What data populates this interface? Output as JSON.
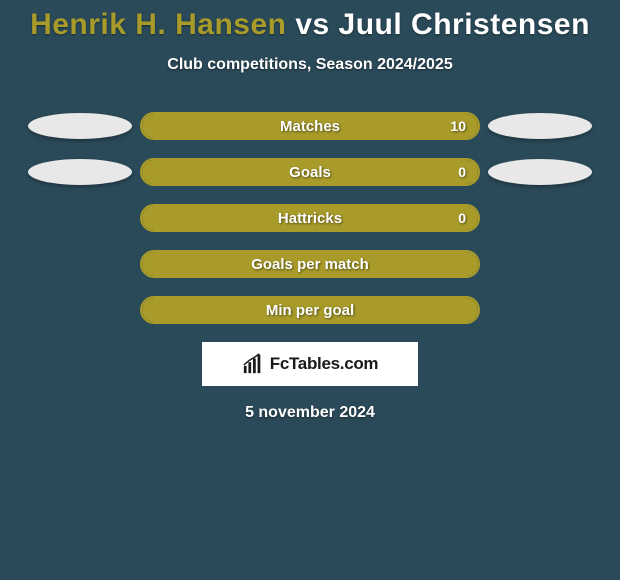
{
  "header": {
    "player1": "Henrik H. Hansen",
    "vs": "vs",
    "player2": "Juul Christensen",
    "subtitle": "Club competitions, Season 2024/2025"
  },
  "colors": {
    "background": "#2b4a59",
    "accent": "#a89b2a",
    "ellipse": "#e8e8e8",
    "brand_bg": "#ffffff",
    "brand_fg": "#1a1a1a",
    "title_p1": "#a89b2a",
    "title_p2": "#ffffff"
  },
  "stats": [
    {
      "label": "Matches",
      "val_right": "10",
      "fill_left_pct": 50,
      "fill_right_pct": 50,
      "show_left_ellipse": true,
      "show_right_ellipse": true,
      "show_val_right": true
    },
    {
      "label": "Goals",
      "val_right": "0",
      "fill_left_pct": 50,
      "fill_right_pct": 50,
      "show_left_ellipse": true,
      "show_right_ellipse": true,
      "show_val_right": true
    },
    {
      "label": "Hattricks",
      "val_right": "0",
      "fill_left_pct": 50,
      "fill_right_pct": 50,
      "show_left_ellipse": false,
      "show_right_ellipse": false,
      "show_val_right": true
    },
    {
      "label": "Goals per match",
      "val_right": "",
      "fill_left_pct": 50,
      "fill_right_pct": 50,
      "show_left_ellipse": false,
      "show_right_ellipse": false,
      "show_val_right": false
    },
    {
      "label": "Min per goal",
      "val_right": "",
      "fill_left_pct": 50,
      "fill_right_pct": 50,
      "show_left_ellipse": false,
      "show_right_ellipse": false,
      "show_val_right": false
    }
  ],
  "brand": {
    "text": "FcTables.com"
  },
  "date": "5 november 2024"
}
